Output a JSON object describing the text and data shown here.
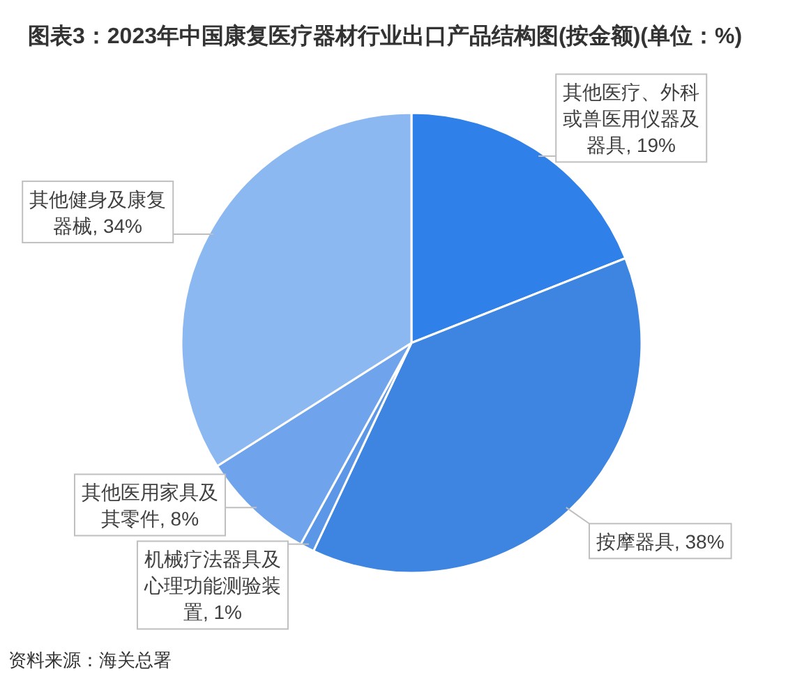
{
  "chart_data": {
    "type": "pie",
    "title": "图表3：2023年中国康复医疗器材行业出口产品结构图(按金额)(单位：%)",
    "categories": [
      "其他医疗、外科或兽医用仪器及器具",
      "按摩器具",
      "机械疗法器具及心理功能测验装置",
      "其他医用家具及其零件",
      "其他健身及康复器械"
    ],
    "values": [
      19,
      38,
      1,
      8,
      34
    ],
    "colors": [
      "#2f80e8",
      "#3d85e0",
      "#5b97e6",
      "#6fa4ec",
      "#8cb8f2"
    ],
    "value_labels": [
      "19%",
      "38%",
      "1%",
      "8%",
      "34%"
    ],
    "annotations": [
      "资料来源：海关总署"
    ]
  }
}
